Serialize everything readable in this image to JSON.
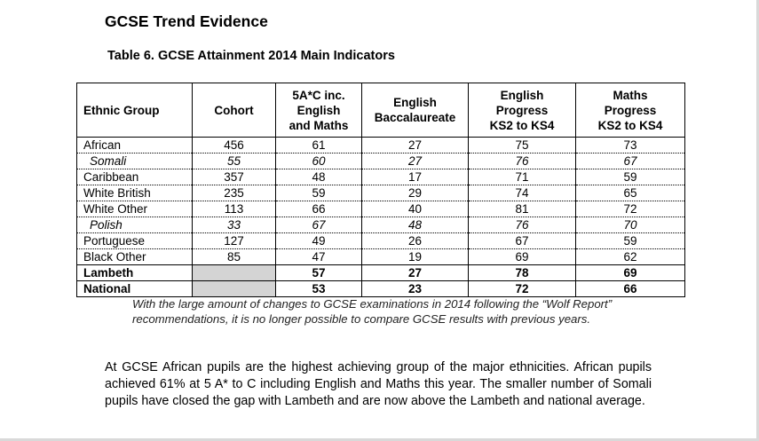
{
  "doc_title": "GCSE Trend Evidence",
  "table_title": "Table 6.  GCSE Attainment 2014 Main Indicators",
  "headers": {
    "group": "Ethnic Group",
    "cohort": "Cohort",
    "a5c_l1": "5A*C inc.",
    "a5c_l2": "English",
    "a5c_l3": "and Maths",
    "eb_l1": "English",
    "eb_l2": "Baccalaureate",
    "ep_l1": "English",
    "ep_l2": "Progress",
    "ep_l3": "KS2 to KS4",
    "mp_l1": "Maths",
    "mp_l2": "Progress",
    "mp_l3": "KS2 to KS4"
  },
  "rows": [
    {
      "group": "African",
      "cohort": "456",
      "a5c": "61",
      "eb": "27",
      "ep": "75",
      "mp": "73"
    },
    {
      "group": "Somali",
      "cohort": "55",
      "a5c": "60",
      "eb": "27",
      "ep": "76",
      "mp": "67"
    },
    {
      "group": "Caribbean",
      "cohort": "357",
      "a5c": "48",
      "eb": "17",
      "ep": "71",
      "mp": "59"
    },
    {
      "group": "White British",
      "cohort": "235",
      "a5c": "59",
      "eb": "29",
      "ep": "74",
      "mp": "65"
    },
    {
      "group": "White Other",
      "cohort": "113",
      "a5c": "66",
      "eb": "40",
      "ep": "81",
      "mp": "72"
    },
    {
      "group": "Polish",
      "cohort": "33",
      "a5c": "67",
      "eb": "48",
      "ep": "76",
      "mp": "70"
    },
    {
      "group": "Portuguese",
      "cohort": "127",
      "a5c": "49",
      "eb": "26",
      "ep": "67",
      "mp": "59"
    },
    {
      "group": "Black Other",
      "cohort": "85",
      "a5c": "47",
      "eb": "19",
      "ep": "69",
      "mp": "62"
    },
    {
      "group": "Lambeth",
      "cohort": "",
      "a5c": "57",
      "eb": "27",
      "ep": "78",
      "mp": "69"
    },
    {
      "group": "National",
      "cohort": "",
      "a5c": "53",
      "eb": "23",
      "ep": "72",
      "mp": "66"
    }
  ],
  "note": "With the large amount of changes to GCSE examinations in 2014 following the “Wolf Report” recommendations, it is no longer possible to compare GCSE results with previous years.",
  "paragraph": "At GCSE African pupils are the highest achieving group of the major ethnicities. African pupils achieved 61% at 5 A* to C including English and Maths this year. The smaller number of Somali pupils have closed the gap with Lambeth and are now above the Lambeth and national average."
}
